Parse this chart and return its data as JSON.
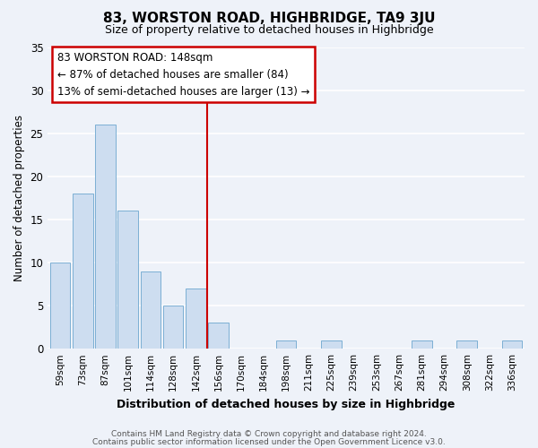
{
  "title": "83, WORSTON ROAD, HIGHBRIDGE, TA9 3JU",
  "subtitle": "Size of property relative to detached houses in Highbridge",
  "xlabel": "Distribution of detached houses by size in Highbridge",
  "ylabel": "Number of detached properties",
  "bin_labels": [
    "59sqm",
    "73sqm",
    "87sqm",
    "101sqm",
    "114sqm",
    "128sqm",
    "142sqm",
    "156sqm",
    "170sqm",
    "184sqm",
    "198sqm",
    "211sqm",
    "225sqm",
    "239sqm",
    "253sqm",
    "267sqm",
    "281sqm",
    "294sqm",
    "308sqm",
    "322sqm",
    "336sqm"
  ],
  "bar_heights": [
    10,
    18,
    26,
    16,
    9,
    5,
    7,
    3,
    0,
    0,
    1,
    0,
    1,
    0,
    0,
    0,
    1,
    0,
    1,
    0,
    1
  ],
  "bar_color": "#cdddf0",
  "bar_edge_color": "#7bafd4",
  "vline_x_index": 7,
  "vline_color": "#cc0000",
  "annotation_line1": "83 WORSTON ROAD: 148sqm",
  "annotation_line2": "← 87% of detached houses are smaller (84)",
  "annotation_line3": "13% of semi-detached houses are larger (13) →",
  "annotation_box_color": "#ffffff",
  "annotation_box_edge": "#cc0000",
  "footnote1": "Contains HM Land Registry data © Crown copyright and database right 2024.",
  "footnote2": "Contains public sector information licensed under the Open Government Licence v3.0.",
  "bg_color": "#eef2f9",
  "ylim": [
    0,
    35
  ],
  "yticks": [
    0,
    5,
    10,
    15,
    20,
    25,
    30,
    35
  ]
}
